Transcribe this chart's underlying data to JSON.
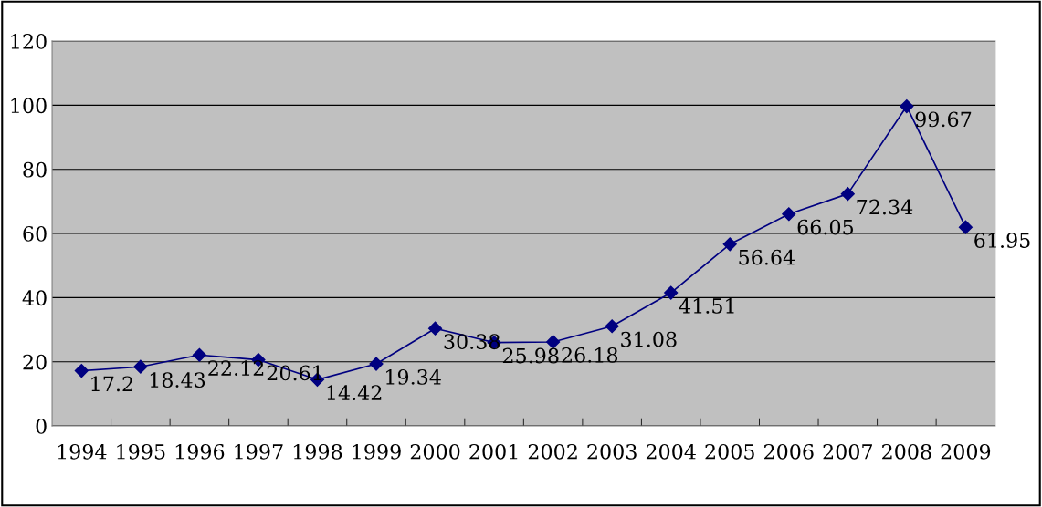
{
  "chart_data": {
    "type": "line",
    "categories": [
      "1994",
      "1995",
      "1996",
      "1997",
      "1998",
      "1999",
      "2000",
      "2001",
      "2002",
      "2003",
      "2004",
      "2005",
      "2006",
      "2007",
      "2008",
      "2009"
    ],
    "series": [
      {
        "color": "#000080",
        "values": [
          17.2,
          18.43,
          22.12,
          20.61,
          14.42,
          19.34,
          30.38,
          25.98,
          26.18,
          31.08,
          41.51,
          56.64,
          66.05,
          72.34,
          99.67,
          61.95
        ]
      }
    ],
    "ylim": [
      0,
      120
    ],
    "yticks": [
      0,
      20,
      40,
      60,
      80,
      100,
      120
    ],
    "grid": "y",
    "marker": "diamond",
    "line_style": "solid",
    "data_labels": true,
    "legend": false
  }
}
